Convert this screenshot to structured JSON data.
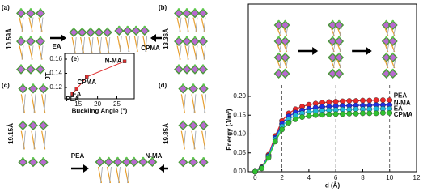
{
  "panels": {
    "a": {
      "label": "(a)",
      "spacing": "10.59Å",
      "ligand": "EA"
    },
    "b": {
      "label": "(b)",
      "spacing": "13.36Å",
      "ligand": "CPMA"
    },
    "c": {
      "label": "(c)",
      "spacing": "19.15Å",
      "ligand": "PEA"
    },
    "d": {
      "label": "(d)",
      "spacing": "19.85Å",
      "ligand": "N-MA"
    }
  },
  "chart_data": [
    {
      "type": "line",
      "panel_label": "(e)",
      "x_label": "Buckling Angle (°)",
      "y_label": "JT",
      "xlim": [
        11.5,
        29.5
      ],
      "ylim": [
        0.104,
        0.168
      ],
      "xticks": [
        15,
        20,
        25
      ],
      "yticks": [
        0.12,
        0.14,
        0.16
      ],
      "series": [
        {
          "name": "JT",
          "color": "#e03030",
          "x": [
            13.5,
            14.6,
            17.2,
            27.0
          ],
          "values": [
            0.111,
            0.118,
            0.135,
            0.157
          ],
          "point_labels": [
            "PEA",
            "EA",
            "CPMA",
            "N-MA"
          ]
        }
      ]
    },
    {
      "type": "line",
      "x_label": "d (Å)",
      "y_label": "Energy (J/m²)",
      "xlim": [
        -0.5,
        12
      ],
      "ylim": [
        0,
        0.445
      ],
      "xticks": [
        0,
        2,
        4,
        6,
        8,
        10,
        12
      ],
      "yticks": [
        {
          "value": 0,
          "label": "0.00"
        },
        {
          "value": 0.05,
          "label": "0.05"
        },
        {
          "value": 0.1,
          "label": "0.10"
        },
        {
          "value": 0.15,
          "label": "0.15"
        },
        {
          "value": 0.2,
          "label": "0.20"
        }
      ],
      "reference_lines": [
        2,
        6,
        10
      ],
      "x": [
        0,
        0.5,
        1,
        1.5,
        2,
        2.5,
        3,
        3.5,
        4,
        4.5,
        5,
        5.5,
        6,
        6.5,
        7,
        7.5,
        8,
        8.5,
        9,
        9.5,
        10
      ],
      "series": [
        {
          "name": "PEA",
          "color": "#e8282a",
          "values": [
            0,
            0.012,
            0.045,
            0.095,
            0.135,
            0.155,
            0.166,
            0.173,
            0.178,
            0.181,
            0.183,
            0.185,
            0.186,
            0.187,
            0.188,
            0.188,
            0.189,
            0.189,
            0.19,
            0.19,
            0.19
          ]
        },
        {
          "name": "N-MA",
          "color": "#2030e0",
          "values": [
            0,
            0.011,
            0.042,
            0.09,
            0.127,
            0.147,
            0.157,
            0.163,
            0.167,
            0.17,
            0.172,
            0.173,
            0.174,
            0.175,
            0.175,
            0.176,
            0.176,
            0.176,
            0.177,
            0.177,
            0.177
          ]
        },
        {
          "name": "EA",
          "color": "#20b8d8",
          "values": [
            0,
            0.01,
            0.04,
            0.086,
            0.12,
            0.139,
            0.149,
            0.155,
            0.158,
            0.161,
            0.162,
            0.163,
            0.164,
            0.165,
            0.165,
            0.166,
            0.166,
            0.166,
            0.167,
            0.167,
            0.167
          ]
        },
        {
          "name": "CPMA",
          "color": "#30c030",
          "values": [
            0,
            0.009,
            0.037,
            0.08,
            0.112,
            0.13,
            0.139,
            0.145,
            0.148,
            0.15,
            0.151,
            0.152,
            0.153,
            0.153,
            0.154,
            0.154,
            0.155,
            0.155,
            0.155,
            0.156,
            0.156
          ]
        }
      ]
    }
  ]
}
